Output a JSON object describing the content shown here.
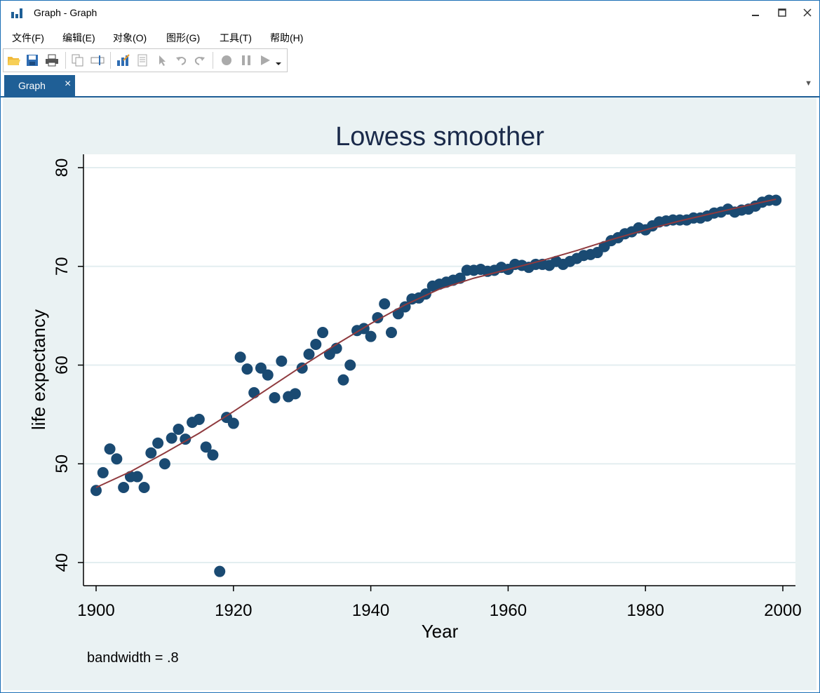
{
  "window": {
    "title": "Graph - Graph",
    "minimize_icon": "minimize-icon",
    "maximize_icon": "maximize-icon",
    "close_icon": "close-icon"
  },
  "menu": [
    "文件(F)",
    "编辑(E)",
    "对象(O)",
    "图形(G)",
    "工具(T)",
    "帮助(H)"
  ],
  "toolbar_icons": [
    "open-icon",
    "save-icon",
    "print-icon",
    "copy-icon",
    "rename-icon",
    "graph-editor-icon",
    "record-icon",
    "pointer-icon",
    "undo-icon",
    "redo-icon",
    "record-start-icon",
    "pause-icon",
    "play-icon",
    "dropdown-icon"
  ],
  "tab": {
    "label": "Graph",
    "close": "×"
  },
  "colors": {
    "accent": "#1f5f96",
    "plot_bg": "#ffffff",
    "graph_bg": "#eaf2f3",
    "marker": "#1a4a72",
    "line": "#8f3a3e",
    "title": "#1a2a4a"
  },
  "chart_data": {
    "type": "scatter",
    "title": "Lowess smoother",
    "xlabel": "Year",
    "ylabel": "life expectancy",
    "note": "bandwidth = .8",
    "xlim": [
      1900,
      2000
    ],
    "ylim": [
      40,
      80
    ],
    "xticks": [
      1900,
      1920,
      1940,
      1960,
      1980,
      2000
    ],
    "yticks": [
      40,
      50,
      60,
      70,
      80
    ],
    "grid": true,
    "points": [
      [
        1900,
        47.3
      ],
      [
        1901,
        49.1
      ],
      [
        1902,
        51.5
      ],
      [
        1903,
        50.5
      ],
      [
        1904,
        47.6
      ],
      [
        1905,
        48.7
      ],
      [
        1906,
        48.7
      ],
      [
        1907,
        47.6
      ],
      [
        1908,
        51.1
      ],
      [
        1909,
        52.1
      ],
      [
        1910,
        50.0
      ],
      [
        1911,
        52.6
      ],
      [
        1912,
        53.5
      ],
      [
        1913,
        52.5
      ],
      [
        1914,
        54.2
      ],
      [
        1915,
        54.5
      ],
      [
        1916,
        51.7
      ],
      [
        1917,
        50.9
      ],
      [
        1918,
        39.1
      ],
      [
        1919,
        54.7
      ],
      [
        1920,
        54.1
      ],
      [
        1921,
        60.8
      ],
      [
        1922,
        59.6
      ],
      [
        1923,
        57.2
      ],
      [
        1924,
        59.7
      ],
      [
        1925,
        59.0
      ],
      [
        1926,
        56.7
      ],
      [
        1927,
        60.4
      ],
      [
        1928,
        56.8
      ],
      [
        1929,
        57.1
      ],
      [
        1930,
        59.7
      ],
      [
        1931,
        61.1
      ],
      [
        1932,
        62.1
      ],
      [
        1933,
        63.3
      ],
      [
        1934,
        61.1
      ],
      [
        1935,
        61.7
      ],
      [
        1936,
        58.5
      ],
      [
        1937,
        60.0
      ],
      [
        1938,
        63.5
      ],
      [
        1939,
        63.7
      ],
      [
        1940,
        62.9
      ],
      [
        1941,
        64.8
      ],
      [
        1942,
        66.2
      ],
      [
        1943,
        63.3
      ],
      [
        1944,
        65.2
      ],
      [
        1945,
        65.9
      ],
      [
        1946,
        66.7
      ],
      [
        1947,
        66.8
      ],
      [
        1948,
        67.2
      ],
      [
        1949,
        68.0
      ],
      [
        1950,
        68.2
      ],
      [
        1951,
        68.4
      ],
      [
        1952,
        68.6
      ],
      [
        1953,
        68.8
      ],
      [
        1954,
        69.6
      ],
      [
        1955,
        69.6
      ],
      [
        1956,
        69.7
      ],
      [
        1957,
        69.5
      ],
      [
        1958,
        69.6
      ],
      [
        1959,
        69.9
      ],
      [
        1960,
        69.7
      ],
      [
        1961,
        70.2
      ],
      [
        1962,
        70.1
      ],
      [
        1963,
        69.9
      ],
      [
        1964,
        70.2
      ],
      [
        1965,
        70.2
      ],
      [
        1966,
        70.1
      ],
      [
        1967,
        70.5
      ],
      [
        1968,
        70.2
      ],
      [
        1969,
        70.5
      ],
      [
        1970,
        70.8
      ],
      [
        1971,
        71.1
      ],
      [
        1972,
        71.2
      ],
      [
        1973,
        71.4
      ],
      [
        1974,
        72.0
      ],
      [
        1975,
        72.6
      ],
      [
        1976,
        72.9
      ],
      [
        1977,
        73.3
      ],
      [
        1978,
        73.5
      ],
      [
        1979,
        73.9
      ],
      [
        1980,
        73.7
      ],
      [
        1981,
        74.1
      ],
      [
        1982,
        74.5
      ],
      [
        1983,
        74.6
      ],
      [
        1984,
        74.7
      ],
      [
        1985,
        74.7
      ],
      [
        1986,
        74.7
      ],
      [
        1987,
        74.9
      ],
      [
        1988,
        74.9
      ],
      [
        1989,
        75.1
      ],
      [
        1990,
        75.4
      ],
      [
        1991,
        75.5
      ],
      [
        1992,
        75.8
      ],
      [
        1993,
        75.5
      ],
      [
        1994,
        75.7
      ],
      [
        1995,
        75.8
      ],
      [
        1996,
        76.1
      ],
      [
        1997,
        76.5
      ],
      [
        1998,
        76.7
      ],
      [
        1999,
        76.7
      ]
    ],
    "smooth_series": {
      "x": [
        1900,
        1905,
        1910,
        1915,
        1920,
        1925,
        1930,
        1935,
        1940,
        1945,
        1950,
        1955,
        1960,
        1965,
        1970,
        1975,
        1980,
        1985,
        1990,
        1995,
        1999
      ],
      "y": [
        47.6,
        49.2,
        51.1,
        53.1,
        55.3,
        57.6,
        59.9,
        62.1,
        64.2,
        66.1,
        67.7,
        68.8,
        69.7,
        70.6,
        71.6,
        72.7,
        73.7,
        74.6,
        75.4,
        76.2,
        76.8
      ]
    }
  }
}
